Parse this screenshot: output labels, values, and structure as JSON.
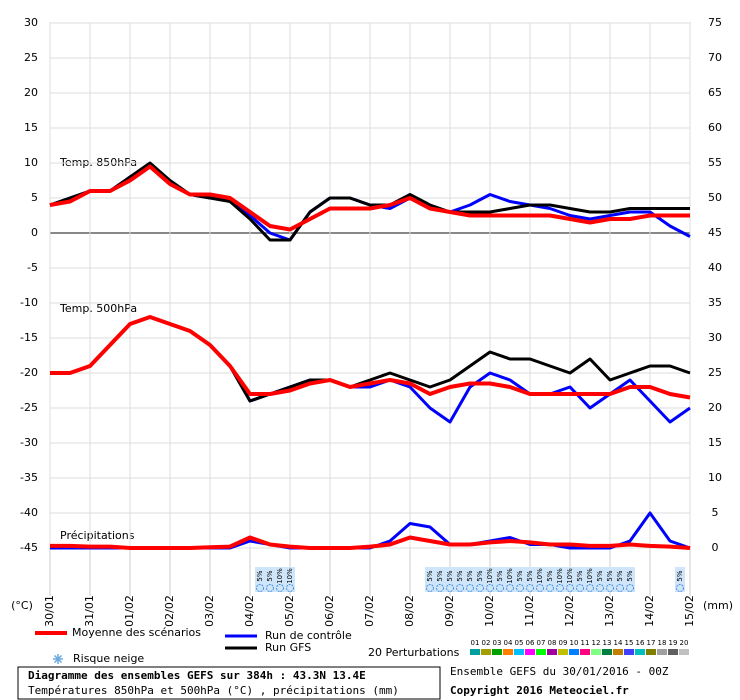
{
  "chart_data": {
    "type": "line",
    "annotations": [
      "Temp. 850hPa",
      "Temp. 500hPa",
      "Précipitations"
    ],
    "y_unit": "(°C)",
    "y2_unit": "(mm)",
    "x": [
      0,
      12,
      24,
      36,
      48,
      60,
      72,
      84,
      96,
      108,
      120,
      132,
      144,
      156,
      168,
      180,
      192,
      204,
      216,
      228,
      240,
      252,
      264,
      276,
      288,
      300,
      312,
      324,
      336,
      348,
      360,
      372,
      384
    ],
    "xlim": [
      0,
      384
    ],
    "xticks": [
      {
        "value": 0,
        "label": "30/01"
      },
      {
        "value": 24,
        "label": "31/01"
      },
      {
        "value": 48,
        "label": "01/02"
      },
      {
        "value": 72,
        "label": "02/02"
      },
      {
        "value": 96,
        "label": "03/02"
      },
      {
        "value": 120,
        "label": "04/02"
      },
      {
        "value": 144,
        "label": "05/02"
      },
      {
        "value": 168,
        "label": "06/02"
      },
      {
        "value": 192,
        "label": "07/02"
      },
      {
        "value": 216,
        "label": "08/02"
      },
      {
        "value": 240,
        "label": "09/02"
      },
      {
        "value": 264,
        "label": "10/02"
      },
      {
        "value": 288,
        "label": "11/02"
      },
      {
        "value": 312,
        "label": "12/02"
      },
      {
        "value": 336,
        "label": "13/02"
      },
      {
        "value": 360,
        "label": "14/02"
      },
      {
        "value": 384,
        "label": "15/02"
      }
    ],
    "ylim": [
      -45,
      30
    ],
    "yticks": [
      -45,
      -40,
      -35,
      -30,
      -25,
      -20,
      -15,
      -10,
      -5,
      0,
      5,
      10,
      15,
      20,
      25,
      30
    ],
    "y2lim": [
      0,
      75
    ],
    "y2ticks": [
      0,
      5,
      10,
      15,
      20,
      25,
      30,
      35,
      40,
      45,
      50,
      55,
      60,
      65,
      70,
      75
    ],
    "grid": true,
    "series": [
      {
        "name": "Run de contrôle",
        "color": "#0000ff",
        "width": 3,
        "values": [
          4,
          5,
          6,
          6,
          8,
          9.5,
          7,
          5.5,
          5,
          5,
          2.5,
          0,
          -1,
          3,
          5,
          5,
          4,
          3.5,
          5,
          3.5,
          3,
          4,
          5.5,
          4.5,
          4,
          3.5,
          2.5,
          2,
          2.5,
          3,
          3,
          1,
          -0.5
        ]
      },
      {
        "name": "Run GFS",
        "color": "#000000",
        "width": 3,
        "values": [
          4,
          5,
          6,
          6,
          8,
          10,
          7.5,
          5.5,
          5,
          4.5,
          2,
          -1,
          -1,
          3,
          5,
          5,
          4,
          4,
          5.5,
          4,
          3,
          3,
          3,
          3.5,
          4,
          4,
          3.5,
          3,
          3,
          3.5,
          3.5,
          3.5,
          3.5
        ]
      },
      {
        "name": "Moyenne des scénarios",
        "color": "#ff0000",
        "width": 4,
        "values": [
          4,
          4.5,
          6,
          6,
          7.5,
          9.5,
          7,
          5.5,
          5.5,
          5,
          3,
          1,
          0.5,
          2,
          3.5,
          3.5,
          3.5,
          4,
          5,
          3.5,
          3,
          2.5,
          2.5,
          2.5,
          2.5,
          2.5,
          2,
          1.5,
          2,
          2,
          2.5,
          2.5,
          2.5
        ]
      },
      {
        "color": "#0000ff",
        "width": 3,
        "values": [
          -20,
          -20,
          -19,
          -16,
          -13,
          -12,
          -13,
          -14,
          -16,
          -19,
          -24,
          -23,
          -22,
          -21,
          -21,
          -22,
          -22,
          -21,
          -22,
          -25,
          -27,
          -22,
          -20,
          -21,
          -23,
          -23,
          -22,
          -25,
          -23,
          -21,
          -24,
          -27,
          -25
        ]
      },
      {
        "color": "#000000",
        "width": 3,
        "values": [
          -20,
          -20,
          -19,
          -16,
          -13,
          -12,
          -13,
          -14,
          -16,
          -19,
          -24,
          -23,
          -22,
          -21,
          -21,
          -22,
          -21,
          -20,
          -21,
          -22,
          -21,
          -19,
          -17,
          -18,
          -18,
          -19,
          -20,
          -18,
          -21,
          -20,
          -19,
          -19,
          -20
        ]
      },
      {
        "color": "#ff0000",
        "width": 4,
        "values": [
          -20,
          -20,
          -19,
          -16,
          -13,
          -12,
          -13,
          -14,
          -16,
          -19,
          -23,
          -23,
          -22.5,
          -21.5,
          -21,
          -22,
          -21.5,
          -21,
          -21.5,
          -23,
          -22,
          -21.5,
          -21.5,
          -22,
          -23,
          -23,
          -23,
          -23,
          -23,
          -22,
          -22,
          -23,
          -23.5
        ]
      },
      {
        "color": "#0000ff",
        "width": 3,
        "axis": "y2",
        "values": [
          0,
          0,
          0,
          0,
          0,
          0,
          0,
          0,
          0,
          0,
          1,
          0.5,
          0,
          0,
          0,
          0,
          0,
          1,
          3.5,
          3,
          0.5,
          0.5,
          1,
          1.5,
          0.5,
          0.5,
          0,
          0,
          0,
          1,
          5,
          1,
          0
        ]
      },
      {
        "color": "#ff0000",
        "width": 4,
        "axis": "y2",
        "values": [
          0.3,
          0.3,
          0.2,
          0.2,
          0,
          0,
          0,
          0,
          0.1,
          0.2,
          1.5,
          0.5,
          0.2,
          0,
          0,
          0,
          0.2,
          0.5,
          1.5,
          1,
          0.5,
          0.5,
          0.8,
          1,
          0.8,
          0.5,
          0.5,
          0.3,
          0.3,
          0.5,
          0.3,
          0.2,
          0
        ]
      }
    ],
    "snow_label": "Risque neige",
    "snow_risk": [
      {
        "x": 126,
        "label": "5%"
      },
      {
        "x": 132,
        "label": "5%"
      },
      {
        "x": 138,
        "label": "10%"
      },
      {
        "x": 144,
        "label": "10%"
      },
      {
        "x": 228,
        "label": "5%"
      },
      {
        "x": 234,
        "label": "5%"
      },
      {
        "x": 240,
        "label": "5%"
      },
      {
        "x": 246,
        "label": "5%"
      },
      {
        "x": 252,
        "label": "5%"
      },
      {
        "x": 258,
        "label": "5%"
      },
      {
        "x": 264,
        "label": "10%"
      },
      {
        "x": 270,
        "label": "5%"
      },
      {
        "x": 276,
        "label": "10%"
      },
      {
        "x": 282,
        "label": "5%"
      },
      {
        "x": 288,
        "label": "5%"
      },
      {
        "x": 294,
        "label": "10%"
      },
      {
        "x": 300,
        "label": "5%"
      },
      {
        "x": 306,
        "label": "10%"
      },
      {
        "x": 312,
        "label": "10%"
      },
      {
        "x": 318,
        "label": "5%"
      },
      {
        "x": 324,
        "label": "10%"
      },
      {
        "x": 330,
        "label": "5%"
      },
      {
        "x": 336,
        "label": "5%"
      },
      {
        "x": 342,
        "label": "5%"
      },
      {
        "x": 348,
        "label": "5%"
      },
      {
        "x": 378,
        "label": "5%"
      }
    ],
    "perturbations_label": "20 Perturbations",
    "perturbations": [
      {
        "label": "01",
        "color": "#00a0a0"
      },
      {
        "label": "02",
        "color": "#a0a000"
      },
      {
        "label": "03",
        "color": "#00a000"
      },
      {
        "label": "04",
        "color": "#ff8000"
      },
      {
        "label": "05",
        "color": "#00c0ff"
      },
      {
        "label": "06",
        "color": "#ff00ff"
      },
      {
        "label": "07",
        "color": "#00ff00"
      },
      {
        "label": "08",
        "color": "#a000a0"
      },
      {
        "label": "09",
        "color": "#c0c000"
      },
      {
        "label": "10",
        "color": "#0080ff"
      },
      {
        "label": "11",
        "color": "#ff0080"
      },
      {
        "label": "12",
        "color": "#80ff80"
      },
      {
        "label": "13",
        "color": "#008040"
      },
      {
        "label": "14",
        "color": "#c08000"
      },
      {
        "label": "15",
        "color": "#4040ff"
      },
      {
        "label": "16",
        "color": "#00c0c0"
      },
      {
        "label": "17",
        "color": "#808000"
      },
      {
        "label": "18",
        "color": "#a0a0a0"
      },
      {
        "label": "19",
        "color": "#606060"
      },
      {
        "label": "20",
        "color": "#c0c0c0"
      }
    ]
  },
  "footer": {
    "title": "Diagramme des ensembles GEFS sur 384h : 43.3N 13.4E",
    "subtitle": "Températures 850hPa et 500hPa (°C) , précipitations (mm)",
    "run": "Ensemble GEFS du 30/01/2016 - 00Z",
    "copyright": "Copyright 2016 Meteociel.fr"
  }
}
